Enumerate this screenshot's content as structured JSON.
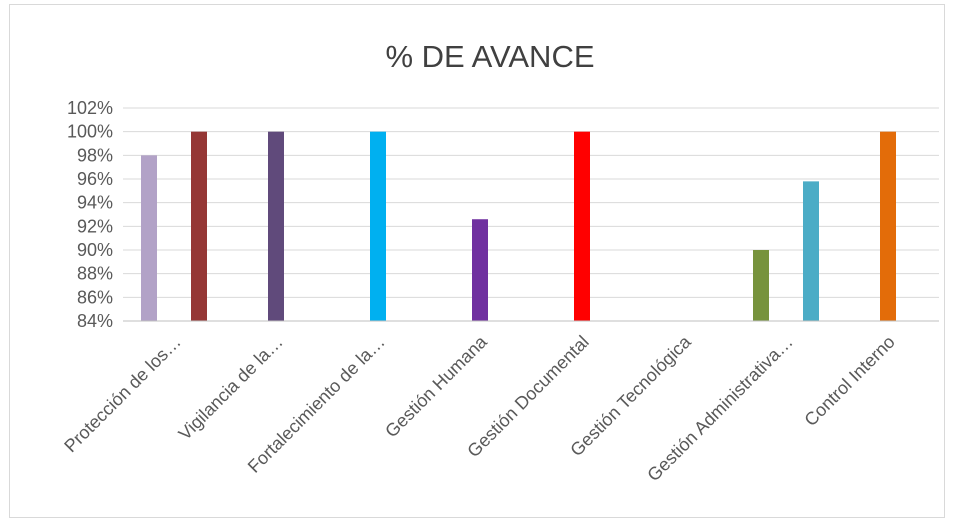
{
  "chart_data": {
    "type": "bar",
    "title": "% DE AVANCE",
    "xlabel": "",
    "ylabel": "",
    "ylim": [
      0.84,
      1.02
    ],
    "yticks": [
      "84%",
      "86%",
      "88%",
      "90%",
      "92%",
      "94%",
      "96%",
      "98%",
      "100%",
      "102%"
    ],
    "grid": true,
    "legend": "none",
    "categories": [
      "Protección de los…",
      "Vigilancia de la…",
      "Fortalecimiento de la…",
      "Gestión Humana",
      "Gestión Documental",
      "Gestión Tecnológica",
      "Gestión Administrativa…",
      "Control Interno"
    ],
    "bars": [
      {
        "category_index": 0,
        "value": 0.98,
        "color": "#b2a2c7"
      },
      {
        "category_index": 0,
        "value": 1.0,
        "color": "#953735"
      },
      {
        "category_index": 1,
        "value": 1.0,
        "color": "#604a7b"
      },
      {
        "category_index": 2,
        "value": 1.0,
        "color": "#00b0f0"
      },
      {
        "category_index": 3,
        "value": 0.926,
        "color": "#7030a0"
      },
      {
        "category_index": 4,
        "value": 1.0,
        "color": "#ff0000"
      },
      {
        "category_index": 6,
        "value": 0.9,
        "color": "#77933c"
      },
      {
        "category_index": 6,
        "value": 0.958,
        "color": "#4bacc6"
      },
      {
        "category_index": 7,
        "value": 1.0,
        "color": "#e36c09"
      }
    ],
    "colors": {
      "grid": "#d9d9d9",
      "axis": "#bfbfbf",
      "text": "#595959"
    }
  }
}
